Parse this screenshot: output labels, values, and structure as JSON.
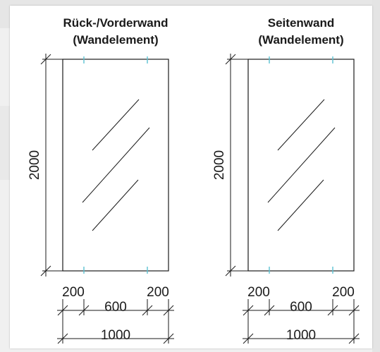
{
  "panels": [
    {
      "title_line1": "Rück-/Vorderwand",
      "title_line2": "(Wandelement)",
      "height_dim": "2000",
      "edge_left_dim": "200",
      "middle_dim": "600",
      "edge_right_dim": "200",
      "total_width_dim": "1000"
    },
    {
      "title_line1": "Seitenwand",
      "title_line2": "(Wandelement)",
      "height_dim": "2000",
      "edge_left_dim": "200",
      "middle_dim": "600",
      "edge_right_dim": "200",
      "total_width_dim": "1000"
    }
  ],
  "colors": {
    "line": "#1a1a1a",
    "marker": "#5bc2d2",
    "card": "#ffffff",
    "background": "#f0f0f0"
  }
}
